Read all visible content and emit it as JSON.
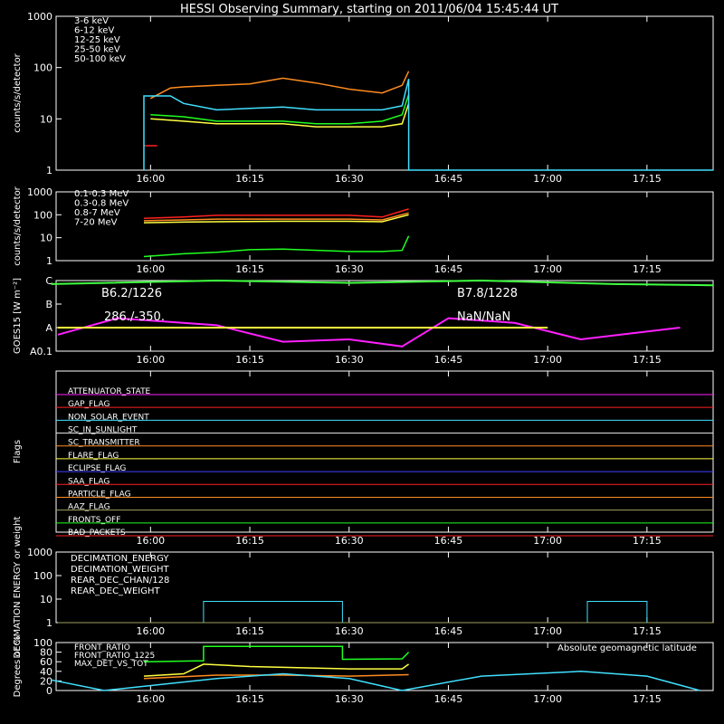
{
  "title": "HESSI Observing Summary, starting on 2011/06/04 15:45:44 UT",
  "time_ticks": [
    "16:00",
    "16:15",
    "16:30",
    "16:45",
    "17:00",
    "17:15"
  ],
  "chart_data": [
    {
      "type": "line",
      "panel": "count-rates",
      "ylabel": "counts/s/detector",
      "yscale": "log",
      "ylim": [
        1,
        1000
      ],
      "y_ticks": [
        "1",
        "10",
        "100",
        "1000"
      ],
      "x_range": [
        "15:45:44",
        "17:25"
      ],
      "legend_position": "top-left",
      "series": [
        {
          "name": "3-6 keV",
          "color": "#ff2020",
          "points": [
            [
              "15:59",
              3
            ],
            [
              "16:00",
              3
            ],
            [
              "16:01",
              3
            ]
          ]
        },
        {
          "name": "6-12 keV",
          "color": "#ff8c20",
          "points": [
            [
              "16:00",
              25
            ],
            [
              "16:03",
              40
            ],
            [
              "16:05",
              42
            ],
            [
              "16:10",
              45
            ],
            [
              "16:15",
              48
            ],
            [
              "16:20",
              62
            ],
            [
              "16:25",
              50
            ],
            [
              "16:30",
              38
            ],
            [
              "16:35",
              32
            ],
            [
              "16:38",
              45
            ],
            [
              "16:39",
              85
            ]
          ]
        },
        {
          "name": "12-25 keV",
          "color": "#ffff40",
          "points": [
            [
              "16:00",
              10
            ],
            [
              "16:05",
              9
            ],
            [
              "16:10",
              8
            ],
            [
              "16:15",
              8
            ],
            [
              "16:20",
              8
            ],
            [
              "16:25",
              7
            ],
            [
              "16:30",
              7
            ],
            [
              "16:35",
              7
            ],
            [
              "16:38",
              8
            ],
            [
              "16:39",
              20
            ]
          ]
        },
        {
          "name": "25-50 keV",
          "color": "#20ff20",
          "points": [
            [
              "16:00",
              12
            ],
            [
              "16:05",
              11
            ],
            [
              "16:10",
              9
            ],
            [
              "16:15",
              9
            ],
            [
              "16:20",
              9
            ],
            [
              "16:25",
              8
            ],
            [
              "16:30",
              8
            ],
            [
              "16:35",
              9
            ],
            [
              "16:38",
              12
            ],
            [
              "16:39",
              30
            ]
          ]
        },
        {
          "name": "50-100 keV",
          "color": "#40e0ff",
          "points": [
            [
              "15:59",
              1
            ],
            [
              "15:59",
              28
            ],
            [
              "16:03",
              28
            ],
            [
              "16:05",
              20
            ],
            [
              "16:10",
              15
            ],
            [
              "16:15",
              16
            ],
            [
              "16:20",
              17
            ],
            [
              "16:25",
              15
            ],
            [
              "16:30",
              15
            ],
            [
              "16:35",
              15
            ],
            [
              "16:38",
              18
            ],
            [
              "16:39",
              60
            ],
            [
              "16:39",
              1
            ],
            [
              "17:25",
              1
            ]
          ]
        }
      ]
    },
    {
      "type": "line",
      "panel": "high-energy-rates",
      "ylabel": "counts/s/detector",
      "yscale": "log",
      "ylim": [
        1,
        1000
      ],
      "y_ticks": [
        "1",
        "10",
        "100",
        "1000"
      ],
      "legend_position": "top-left",
      "series": [
        {
          "name": "0.1-0.3 MeV",
          "color": "#ff2020",
          "points": [
            [
              "15:59",
              70
            ],
            [
              "16:05",
              80
            ],
            [
              "16:10",
              95
            ],
            [
              "16:20",
              95
            ],
            [
              "16:30",
              95
            ],
            [
              "16:35",
              80
            ],
            [
              "16:39",
              180
            ]
          ]
        },
        {
          "name": "0.3-0.8 MeV",
          "color": "#ff8c20",
          "points": [
            [
              "15:59",
              55
            ],
            [
              "16:05",
              60
            ],
            [
              "16:10",
              65
            ],
            [
              "16:20",
              65
            ],
            [
              "16:30",
              65
            ],
            [
              "16:35",
              60
            ],
            [
              "16:39",
              120
            ]
          ]
        },
        {
          "name": "0.8-7 MeV",
          "color": "#ffff40",
          "points": [
            [
              "15:59",
              45
            ],
            [
              "16:05",
              48
            ],
            [
              "16:10",
              50
            ],
            [
              "16:20",
              52
            ],
            [
              "16:30",
              52
            ],
            [
              "16:35",
              50
            ],
            [
              "16:39",
              100
            ]
          ]
        },
        {
          "name": "7-20 MeV",
          "color": "#20ff20",
          "points": [
            [
              "15:59",
              1.5
            ],
            [
              "16:05",
              2
            ],
            [
              "16:10",
              2.3
            ],
            [
              "16:15",
              3
            ],
            [
              "16:20",
              3.2
            ],
            [
              "16:30",
              2.5
            ],
            [
              "16:35",
              2.5
            ],
            [
              "16:38",
              2.8
            ],
            [
              "16:39",
              12
            ]
          ]
        }
      ]
    },
    {
      "type": "line",
      "panel": "goes",
      "ylabel": "GOES15 [W m⁻²]",
      "y_ticks": [
        "A0.1",
        "A",
        "B",
        "C"
      ],
      "annotations": [
        "B6.2/1226",
        "B7.8/1228",
        "286./-350.",
        "NaN/NaN"
      ],
      "series": [
        {
          "name": "GOES long",
          "color": "#40ff40",
          "points": [
            [
              "15:45",
              2.85
            ],
            [
              "16:10",
              3.0
            ],
            [
              "16:30",
              2.9
            ],
            [
              "16:50",
              3.0
            ],
            [
              "17:10",
              2.85
            ],
            [
              "17:25",
              2.8
            ]
          ]
        },
        {
          "name": "GOES short",
          "color": "#ff20ff",
          "points": [
            [
              "15:46",
              0.7
            ],
            [
              "15:55",
              1.4
            ],
            [
              "16:10",
              1.1
            ],
            [
              "16:20",
              0.4
            ],
            [
              "16:30",
              0.5
            ],
            [
              "16:38",
              0.2
            ],
            [
              "16:45",
              1.4
            ],
            [
              "16:55",
              1.2
            ],
            [
              "17:05",
              0.5
            ],
            [
              "17:20",
              1.0
            ]
          ]
        },
        {
          "name": "attenuator",
          "color": "#ffff40",
          "points": [
            [
              "15:46",
              1.0
            ],
            [
              "16:08",
              1.0
            ],
            [
              "16:33",
              1.0
            ],
            [
              "17:00",
              1.0
            ]
          ]
        }
      ]
    },
    {
      "type": "line",
      "panel": "flags",
      "ylabel": "Flags",
      "flags": [
        {
          "name": "ATTENUATOR_STATE",
          "color": "#ff20ff"
        },
        {
          "name": "GAP_FLAG",
          "color": "#ff2020"
        },
        {
          "name": "NON_SOLAR_EVENT",
          "color": "#40e0ff"
        },
        {
          "name": "SC_IN_SUNLIGHT",
          "color": "#e0e0e0"
        },
        {
          "name": "SC_TRANSMITTER",
          "color": "#ff8c20"
        },
        {
          "name": "FLARE_FLAG",
          "color": "#ffff40"
        },
        {
          "name": "ECLIPSE_FLAG",
          "color": "#4040ff"
        },
        {
          "name": "SAA_FLAG",
          "color": "#ff2020"
        },
        {
          "name": "PARTICLE_FLAG",
          "color": "#ff8c20"
        },
        {
          "name": "AAZ_FLAG",
          "color": "#a0a060"
        },
        {
          "name": "FRONTS_OFF",
          "color": "#20ff20"
        },
        {
          "name": "BAD_PACKETS",
          "color": "#ff2020"
        }
      ]
    },
    {
      "type": "line",
      "panel": "decimation",
      "ylabel": "DECIMATION ENERGY or weight",
      "yscale": "log",
      "ylim": [
        1,
        1000
      ],
      "y_ticks": [
        "1",
        "10",
        "100",
        "1000"
      ],
      "series": [
        {
          "name": "DECIMATION_ENERGY",
          "color": "#20ff20",
          "points": []
        },
        {
          "name": "DECIMATION_WEIGHT",
          "color": "#ff8c20",
          "points": [
            [
              "15:46",
              1
            ],
            [
              "17:25",
              1
            ]
          ]
        },
        {
          "name": "REAR_DEC_CHAN/128",
          "color": "#40e0ff",
          "points": [
            [
              "16:08",
              1
            ],
            [
              "16:08",
              8
            ],
            [
              "16:29",
              8
            ],
            [
              "16:29",
              1
            ],
            [
              "17:06",
              1
            ],
            [
              "17:06",
              8
            ],
            [
              "17:15",
              8
            ],
            [
              "17:15",
              1
            ]
          ]
        },
        {
          "name": "REAR_DEC_WEIGHT",
          "color": "#a0a060",
          "points": [
            [
              "15:46",
              1
            ],
            [
              "17:25",
              1
            ]
          ]
        }
      ]
    },
    {
      "type": "line",
      "panel": "ratios",
      "ylabel": "Degrees or %",
      "ylim": [
        0,
        100
      ],
      "y_ticks": [
        "0",
        "20",
        "40",
        "60",
        "80",
        "100"
      ],
      "series": [
        {
          "name": "FRONT_RATIO",
          "color": "#ffff40",
          "points": [
            [
              "15:59",
              30
            ],
            [
              "16:05",
              35
            ],
            [
              "16:08",
              55
            ],
            [
              "16:15",
              50
            ],
            [
              "16:30",
              45
            ],
            [
              "16:38",
              45
            ],
            [
              "16:39",
              55
            ]
          ]
        },
        {
          "name": "FRONT_RATIO_1225",
          "color": "#20ff20",
          "points": [
            [
              "15:59",
              60
            ],
            [
              "16:08",
              62
            ],
            [
              "16:08",
              92
            ],
            [
              "16:29",
              92
            ],
            [
              "16:29",
              65
            ],
            [
              "16:38",
              66
            ],
            [
              "16:39",
              80
            ]
          ]
        },
        {
          "name": "MAX_DET_VS_TOT",
          "color": "#ff8c20",
          "points": [
            [
              "15:59",
              25
            ],
            [
              "16:10",
              32
            ],
            [
              "16:20",
              32
            ],
            [
              "16:30",
              30
            ],
            [
              "16:39",
              33
            ]
          ]
        },
        {
          "name": "Absolute geomagnetic latitude",
          "color": "#40e0ff",
          "points": [
            [
              "15:45",
              22
            ],
            [
              "15:53",
              0
            ],
            [
              "16:10",
              25
            ],
            [
              "16:20",
              35
            ],
            [
              "16:30",
              25
            ],
            [
              "16:38",
              0
            ],
            [
              "16:50",
              30
            ],
            [
              "17:05",
              40
            ],
            [
              "17:15",
              30
            ],
            [
              "17:23",
              0
            ]
          ]
        }
      ]
    }
  ]
}
